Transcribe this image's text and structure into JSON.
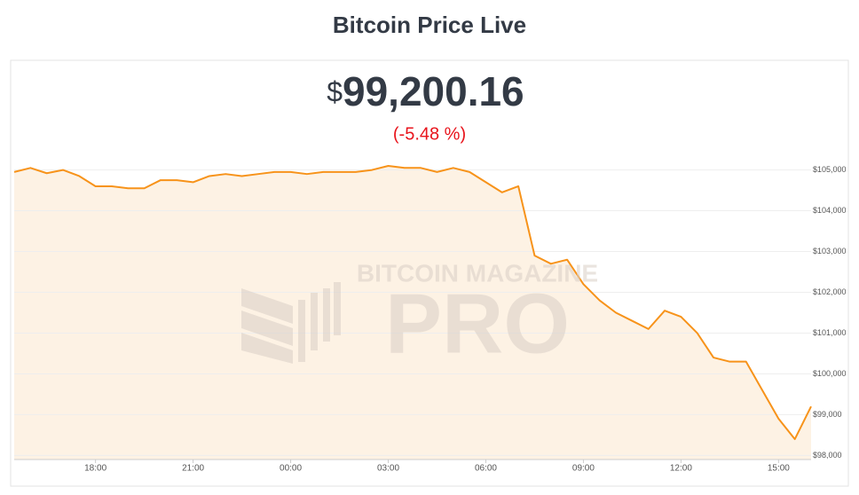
{
  "header": {
    "title": "Bitcoin Price Live"
  },
  "price": {
    "symbol": "$",
    "value": "99,200.16",
    "change": "(-5.48 %)"
  },
  "watermark": {
    "top": "BITCOIN MAGAZINE",
    "bottom": "PRO"
  },
  "chart_data": {
    "type": "line",
    "color": "#f7931a",
    "fill": "#fdf2e4",
    "grid": true,
    "categories": [
      null,
      null,
      null,
      null,
      null,
      "18:00",
      null,
      null,
      null,
      null,
      null,
      "21:00",
      null,
      null,
      null,
      null,
      null,
      "00:00",
      null,
      null,
      null,
      null,
      null,
      "03:00",
      null,
      null,
      null,
      null,
      null,
      "06:00",
      null,
      null,
      null,
      null,
      null,
      "09:00",
      null,
      null,
      null,
      null,
      null,
      "12:00",
      null,
      null,
      null,
      null,
      null,
      "15:00",
      null,
      null
    ],
    "values": [
      104950,
      105050,
      104920,
      105000,
      104850,
      104600,
      104600,
      104550,
      104550,
      104750,
      104750,
      104700,
      104850,
      104900,
      104850,
      104900,
      104950,
      104950,
      104900,
      104950,
      104950,
      104950,
      105000,
      105100,
      105050,
      105050,
      104950,
      105050,
      104950,
      104700,
      104450,
      104600,
      102900,
      102700,
      102800,
      102200,
      101800,
      101500,
      101300,
      101100,
      101550,
      101400,
      101000,
      100400,
      100300,
      100300,
      99600,
      98900,
      98400,
      99200
    ],
    "ylim": [
      97900,
      105600
    ],
    "yticks": [
      {
        "value": 98000,
        "label": "$98,000"
      },
      {
        "value": 99000,
        "label": "$99,000"
      },
      {
        "value": 100000,
        "label": "$100,000"
      },
      {
        "value": 101000,
        "label": "$101,000"
      },
      {
        "value": 102000,
        "label": "$102,000"
      },
      {
        "value": 103000,
        "label": "$103,000"
      },
      {
        "value": 104000,
        "label": "$104,000"
      },
      {
        "value": 105000,
        "label": "$105,000"
      }
    ]
  }
}
